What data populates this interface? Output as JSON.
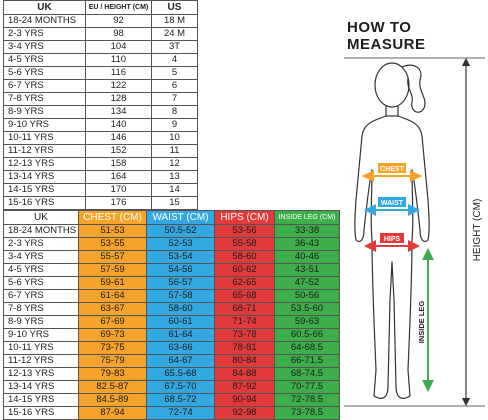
{
  "size_table": {
    "headers": [
      "UK",
      "EU / HEIGHT (CM)",
      "US"
    ],
    "rows": [
      [
        "18-24 MONTHS",
        "92",
        "18 M"
      ],
      [
        "2-3 YRS",
        "98",
        "24 M"
      ],
      [
        "3-4 YRS",
        "104",
        "3T"
      ],
      [
        "4-5 YRS",
        "110",
        "4"
      ],
      [
        "5-6 YRS",
        "116",
        "5"
      ],
      [
        "6-7 YRS",
        "122",
        "6"
      ],
      [
        "7-8 YRS",
        "128",
        "7"
      ],
      [
        "8-9 YRS",
        "134",
        "8"
      ],
      [
        "9-10 YRS",
        "140",
        "9"
      ],
      [
        "10-11 YRS",
        "146",
        "10"
      ],
      [
        "11-12 YRS",
        "152",
        "11"
      ],
      [
        "12-13 YRS",
        "158",
        "12"
      ],
      [
        "13-14 YRS",
        "164",
        "13"
      ],
      [
        "14-15 YRS",
        "170",
        "14"
      ],
      [
        "15-16 YRS",
        "176",
        "15"
      ]
    ]
  },
  "measure_table": {
    "headers": [
      "UK",
      "CHEST (CM)",
      "WAIST (CM)",
      "HIPS (CM)",
      "INSIDE LEG (CM)"
    ],
    "rows": [
      [
        "18-24 MONTHS",
        "51-53",
        "50.5-52",
        "53-56",
        "33-38"
      ],
      [
        "2-3 YRS",
        "53-55",
        "52-53",
        "55-58",
        "36-43"
      ],
      [
        "3-4 YRS",
        "55-57",
        "53-54",
        "58-60",
        "40-46"
      ],
      [
        "4-5 YRS",
        "57-59",
        "54-56",
        "60-62",
        "43-51"
      ],
      [
        "5-6 YRS",
        "59-61",
        "56-57",
        "62-65",
        "47-52"
      ],
      [
        "6-7 YRS",
        "61-64",
        "57-58",
        "65-68",
        "50-56"
      ],
      [
        "7-8 YRS",
        "63-67",
        "58-60",
        "68-71",
        "53.5-60"
      ],
      [
        "8-9 YRS",
        "67-69",
        "60-61",
        "71-74",
        "59-63"
      ],
      [
        "9-10 YRS",
        "69-73",
        "61-64",
        "73-78",
        "60.5-66"
      ],
      [
        "10-11 YRS",
        "73-75",
        "63-66",
        "78-81",
        "64-68.5"
      ],
      [
        "11-12 YRS",
        "75-79",
        "64-67",
        "80-84",
        "66-71.5"
      ],
      [
        "12-13 YRS",
        "79-83",
        "65.5-68",
        "84-88",
        "68-74.5"
      ],
      [
        "13-14 YRS",
        "82.5-87",
        "67.5-70",
        "87-92",
        "70-77.5"
      ],
      [
        "14-15 YRS",
        "84.5-89",
        "68.5-72",
        "90-94",
        "72-78.5"
      ],
      [
        "15-16 YRS",
        "87-94",
        "72-74",
        "92-98",
        "73-78.5"
      ]
    ]
  },
  "illustration": {
    "title": "HOW TO MEASURE",
    "labels": {
      "chest": "CHEST",
      "waist": "WAIST",
      "hips": "HIPS",
      "inside_leg": "INSIDE LEG",
      "height": "HEIGHT (CM)"
    }
  },
  "colors": {
    "chest": "#f5a32a",
    "waist": "#33a8e0",
    "hips": "#e23a3a",
    "inside_leg": "#3eae4a"
  }
}
